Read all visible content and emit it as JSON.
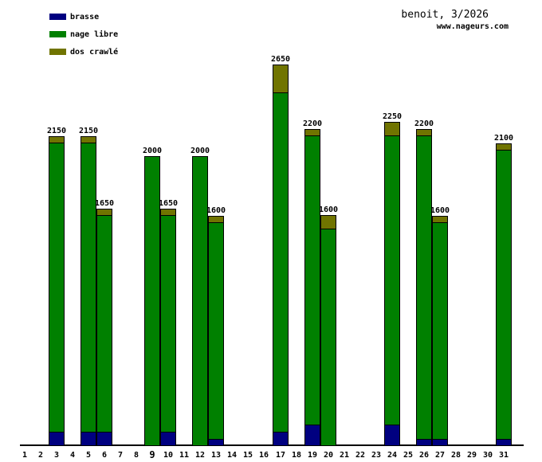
{
  "chart_data": {
    "type": "bar",
    "stacked": true,
    "title": "benoit, 3/2026",
    "website": "www.nageurs.com",
    "legend_position": "top-left",
    "grid": false,
    "colors": {
      "background": "#ffffff",
      "text": "#000000",
      "axis": "#000000",
      "brasse": "#000080",
      "nage_libre": "#008000",
      "dos_crawle": "#707400"
    },
    "legend": [
      {
        "key": "brasse",
        "name": "brasse",
        "color": "#000080"
      },
      {
        "key": "nage_libre",
        "name": "nage libre",
        "color": "#008000"
      },
      {
        "key": "dos_crawle",
        "name": "dos crawlé",
        "color": "#707400"
      }
    ],
    "x_labels": [
      "1",
      "2",
      "3",
      "4",
      "5",
      "6",
      "7",
      "8",
      "9",
      "10",
      "11",
      "12",
      "13",
      "14",
      "15",
      "16",
      "17",
      "18",
      "19",
      "20",
      "21",
      "22",
      "23",
      "24",
      "25",
      "26",
      "27",
      "28",
      "29",
      "30",
      "31"
    ],
    "highlighted_x_label": "9",
    "ylim": [
      0,
      2650
    ],
    "bars": [
      {
        "day": 3,
        "total": 2150,
        "values": {
          "brasse": 100,
          "nage_libre": 2000,
          "dos_crawle": 50
        }
      },
      {
        "day": 5,
        "total": 2150,
        "values": {
          "brasse": 100,
          "nage_libre": 2000,
          "dos_crawle": 50
        }
      },
      {
        "day": 6,
        "total": 1650,
        "values": {
          "brasse": 100,
          "nage_libre": 1500,
          "dos_crawle": 50
        }
      },
      {
        "day": 9,
        "total": 2000,
        "values": {
          "brasse": 0,
          "nage_libre": 2000,
          "dos_crawle": 0
        }
      },
      {
        "day": 10,
        "total": 1650,
        "values": {
          "brasse": 100,
          "nage_libre": 1500,
          "dos_crawle": 50
        }
      },
      {
        "day": 12,
        "total": 2000,
        "values": {
          "brasse": 0,
          "nage_libre": 2000,
          "dos_crawle": 0
        }
      },
      {
        "day": 13,
        "total": 1600,
        "values": {
          "brasse": 50,
          "nage_libre": 1500,
          "dos_crawle": 50
        }
      },
      {
        "day": 17,
        "total": 2650,
        "values": {
          "brasse": 100,
          "nage_libre": 2350,
          "dos_crawle": 200
        }
      },
      {
        "day": 19,
        "total": 2200,
        "values": {
          "brasse": 150,
          "nage_libre": 2000,
          "dos_crawle": 50
        }
      },
      {
        "day": 20,
        "total": 1600,
        "values": {
          "brasse": 0,
          "nage_libre": 1500,
          "dos_crawle": 100
        }
      },
      {
        "day": 24,
        "total": 2250,
        "values": {
          "brasse": 150,
          "nage_libre": 2000,
          "dos_crawle": 100
        }
      },
      {
        "day": 26,
        "total": 2200,
        "values": {
          "brasse": 50,
          "nage_libre": 2100,
          "dos_crawle": 50
        }
      },
      {
        "day": 27,
        "total": 1600,
        "values": {
          "brasse": 50,
          "nage_libre": 1500,
          "dos_crawle": 50
        }
      },
      {
        "day": 31,
        "total": 2100,
        "values": {
          "brasse": 50,
          "nage_libre": 2000,
          "dos_crawle": 50
        }
      }
    ]
  }
}
